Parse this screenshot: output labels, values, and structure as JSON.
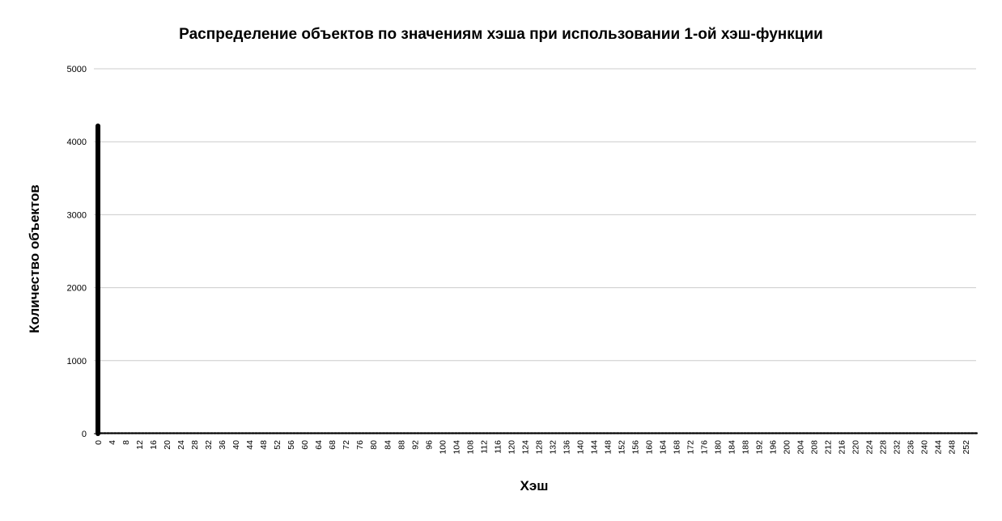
{
  "chart_data": {
    "type": "bar",
    "title": "Распределение объектов по значениям хэша при использовании 1-ой хэш-функции",
    "xlabel": "Хэш",
    "ylabel": "Количество объектов",
    "ylim": [
      0,
      5000
    ],
    "y_ticks": [
      0,
      1000,
      2000,
      3000,
      4000,
      5000
    ],
    "x_range": [
      0,
      255
    ],
    "x_tick_step": 4,
    "grid": true,
    "legend": "none",
    "bar_color": "#000000",
    "grid_color": "#cccccc",
    "x": [
      0
    ],
    "values": [
      4250
    ]
  }
}
